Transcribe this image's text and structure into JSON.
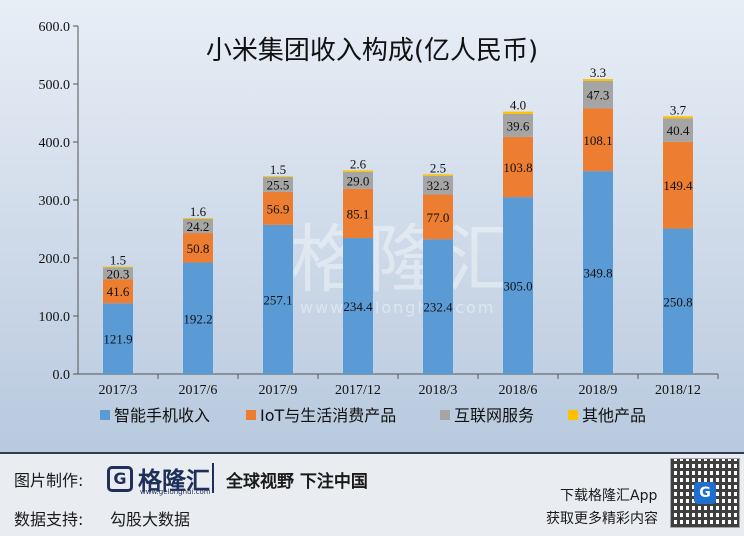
{
  "chart_data": {
    "type": "bar",
    "stacked": true,
    "title": "小米集团收入构成(亿人民币)",
    "categories": [
      "2017/3",
      "2017/6",
      "2017/9",
      "2017/12",
      "2018/3",
      "2018/6",
      "2018/9",
      "2018/12"
    ],
    "series": [
      {
        "name": "智能手机收入",
        "color": "#5b9bd5",
        "values": [
          121.9,
          192.2,
          257.1,
          234.4,
          232.4,
          305.0,
          349.8,
          250.8
        ]
      },
      {
        "name": "IoT与生活消费产品",
        "color": "#ed7d31",
        "values": [
          41.6,
          50.8,
          56.9,
          85.1,
          77.0,
          103.8,
          108.1,
          149.4
        ]
      },
      {
        "name": "互联网服务",
        "color": "#a5a5a5",
        "values": [
          20.3,
          24.2,
          25.5,
          29.0,
          32.3,
          39.6,
          47.3,
          40.4
        ]
      },
      {
        "name": "其他产品",
        "color": "#ffc000",
        "values": [
          1.5,
          1.6,
          1.5,
          2.6,
          2.5,
          4.0,
          3.3,
          3.7
        ]
      }
    ],
    "ylim": [
      0,
      600
    ],
    "yticks": [
      "0.0",
      "100.0",
      "200.0",
      "300.0",
      "400.0",
      "500.0",
      "600.0"
    ],
    "legend_position": "bottom",
    "grid": false
  },
  "watermark": {
    "main": "格隆汇",
    "sub": "www.gelonghui.com"
  },
  "footer": {
    "made_by_label": "图片制作:",
    "logo_letter": "G",
    "logo_name": "格隆汇",
    "logo_url": "www.gelonghui.com",
    "slogan": "全球视野 下注中国",
    "data_support_label": "数据支持:",
    "data_support_value": "勾股大数据",
    "download_text": "下载格隆汇App",
    "more_text": "获取更多精彩内容",
    "qr_badge": "G"
  }
}
